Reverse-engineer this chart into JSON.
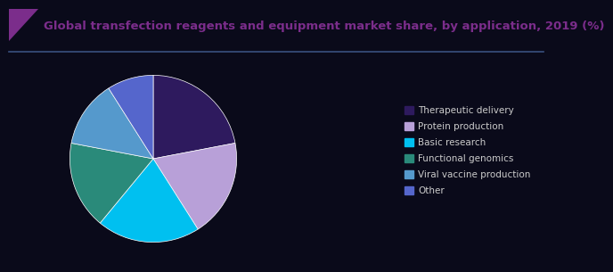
{
  "title": "Global transfection reagents and equipment market share, by application, 2019 (%)",
  "title_color": "#7b2d8b",
  "title_fontsize": 9.5,
  "background_color": "#0a0a1a",
  "slices": [
    {
      "label": "Therapeutic delivery",
      "value": 22,
      "color": "#2e1a5e"
    },
    {
      "label": "Protein production",
      "value": 19,
      "color": "#b8a0d8"
    },
    {
      "label": "Basic research",
      "value": 20,
      "color": "#00c0f0"
    },
    {
      "label": "Functional genomics",
      "value": 17,
      "color": "#2a8a7a"
    },
    {
      "label": "Viral vaccine production",
      "value": 13,
      "color": "#5599cc"
    },
    {
      "label": "Other",
      "value": 9,
      "color": "#5566cc"
    }
  ],
  "edge_color": "#ffffff",
  "edge_linewidth": 0.5,
  "legend_fontsize": 7.5,
  "legend_text_color": "#cccccc",
  "separator_color": "#3a3a6a",
  "title_bar_color": "#7b2d8b",
  "title_line_color": "#3a5080"
}
